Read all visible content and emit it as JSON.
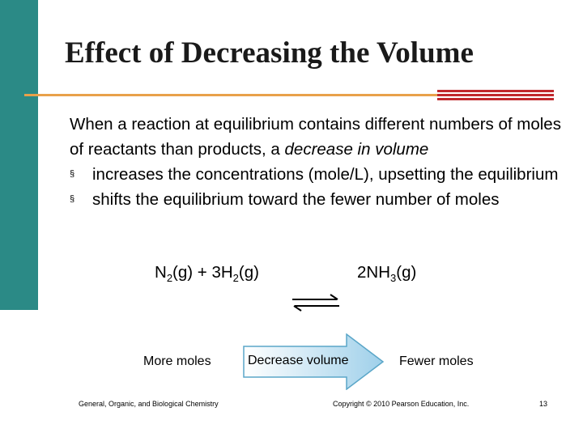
{
  "slide": {
    "title": "Effect of Decreasing the Volume",
    "intro_normal": "When a reaction at equilibrium contains different numbers of moles of reactants than products, a ",
    "intro_italic": "decrease in volume",
    "bullets": [
      "increases the concentrations (mole/L), upsetting the equilibrium",
      "shifts the equilibrium toward the fewer number of moles"
    ],
    "bullet_marker": "§",
    "equation": {
      "reactant_n": "N",
      "reactant_n_sub": "2",
      "reactant_n_state": "(g) + 3H",
      "reactant_h_sub": "2",
      "reactant_h_state": "(g)",
      "product": "2NH",
      "product_sub": "3",
      "product_state": "(g)"
    },
    "diagram": {
      "left_label": "More moles",
      "arrow_label": "Decrease volume",
      "right_label": "Fewer moles"
    },
    "footer": {
      "left": "General, Organic, and Biological Chemistry",
      "center": "Copyright © 2010 Pearson Education, Inc.",
      "page_number": "13"
    },
    "colors": {
      "side_bar": "#2b8a86",
      "title_rule": "#e8a14a",
      "accent_stripes": "#c0282d",
      "arrow_fill_start": "#ffffff",
      "arrow_fill_end": "#9fd0ea"
    }
  }
}
